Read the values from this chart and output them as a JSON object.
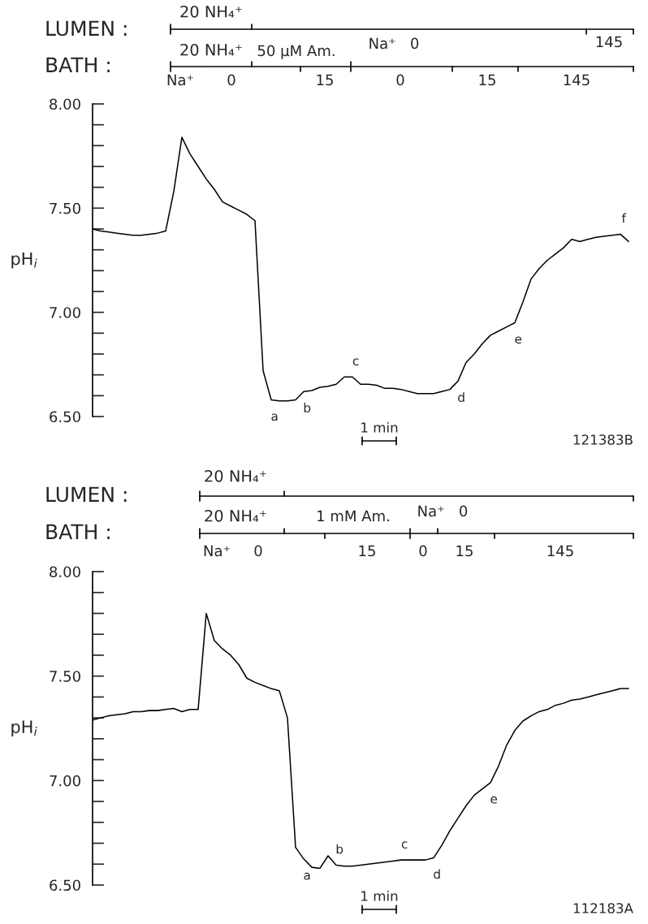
{
  "chart_data": [
    {
      "type": "line",
      "ylabel": "pH$_{i}$",
      "ylim": [
        6.5,
        8.0
      ],
      "yticks": [
        {
          "value": 6.5,
          "label": "6.50"
        },
        {
          "value": 6.6,
          "label": null
        },
        {
          "value": 6.7,
          "label": null
        },
        {
          "value": 6.8,
          "label": null
        },
        {
          "value": 6.9,
          "label": null
        },
        {
          "value": 7.0,
          "label": "7.00"
        },
        {
          "value": 7.1,
          "label": null
        },
        {
          "value": 7.2,
          "label": null
        },
        {
          "value": 7.3,
          "label": null
        },
        {
          "value": 7.4,
          "label": null
        },
        {
          "value": 7.5,
          "label": "7.50"
        },
        {
          "value": 7.6,
          "label": null
        },
        {
          "value": 7.7,
          "label": null
        },
        {
          "value": 7.8,
          "label": null
        },
        {
          "value": 7.9,
          "label": null
        },
        {
          "value": 8.0,
          "label": "8.00"
        }
      ],
      "tick_labels": "y",
      "grid": false,
      "categories": [
        null,
        null,
        null,
        null,
        null,
        null,
        null,
        null,
        null,
        null,
        null,
        null,
        null,
        null,
        null,
        null,
        null,
        null,
        null,
        null,
        null,
        null,
        null,
        null,
        null,
        null,
        null,
        null,
        null,
        null,
        null,
        null,
        null,
        null,
        null,
        null,
        null,
        null,
        null,
        null,
        null,
        null,
        null,
        null,
        null,
        null,
        null,
        null,
        null,
        null,
        null,
        null,
        null,
        null,
        null,
        null,
        null,
        null,
        null,
        null,
        null,
        null,
        null,
        null,
        null,
        null,
        null
      ],
      "series": [
        {
          "color": "#000000",
          "values": [
            7.4,
            7.39,
            7.385,
            7.38,
            7.375,
            7.37,
            7.37,
            7.375,
            7.38,
            7.39,
            7.58,
            7.84,
            7.76,
            7.7,
            7.64,
            7.59,
            7.53,
            7.51,
            7.49,
            7.47,
            7.44,
            6.72,
            6.58,
            6.575,
            6.575,
            6.58,
            6.62,
            6.625,
            6.64,
            6.645,
            6.655,
            6.69,
            6.69,
            6.655,
            6.655,
            6.65,
            6.635,
            6.635,
            6.63,
            6.62,
            6.61,
            6.61,
            6.61,
            6.62,
            6.63,
            6.67,
            6.76,
            6.8,
            6.85,
            6.89,
            6.91,
            6.93,
            6.95,
            7.05,
            7.16,
            7.21,
            7.25,
            7.28,
            7.31,
            7.35,
            7.34,
            7.35,
            7.36,
            7.365,
            7.37,
            7.375,
            7.34
          ],
          "value_labels": [
            null,
            null,
            null,
            null,
            null,
            null,
            null,
            null,
            null,
            null,
            null,
            null,
            null,
            null,
            null,
            null,
            null,
            null,
            null,
            null,
            null,
            null,
            "a",
            null,
            null,
            null,
            "b",
            null,
            null,
            null,
            null,
            null,
            "c",
            null,
            null,
            null,
            null,
            null,
            null,
            null,
            null,
            null,
            null,
            null,
            null,
            "d",
            null,
            null,
            null,
            null,
            null,
            null,
            "e",
            null,
            null,
            null,
            null,
            null,
            null,
            null,
            null,
            null,
            null,
            null,
            null,
            "f",
            null
          ]
        }
      ],
      "annotations": [
        "LUMEN :",
        "20 NH₄⁺",
        "145",
        "BATH :",
        "20 NH₄⁺",
        "50 μM Am.",
        "Na⁺   0",
        "Na⁺",
        "0",
        "15",
        "0",
        "15",
        "145",
        "1 min",
        "121383B"
      ]
    },
    {
      "type": "line",
      "ylabel": "pH$_{i}$",
      "ylim": [
        6.5,
        8.0
      ],
      "yticks": [
        {
          "value": 6.5,
          "label": "6.50"
        },
        {
          "value": 6.6,
          "label": null
        },
        {
          "value": 6.7,
          "label": null
        },
        {
          "value": 6.8,
          "label": null
        },
        {
          "value": 6.9,
          "label": null
        },
        {
          "value": 7.0,
          "label": "7.00"
        },
        {
          "value": 7.1,
          "label": null
        },
        {
          "value": 7.2,
          "label": null
        },
        {
          "value": 7.3,
          "label": null
        },
        {
          "value": 7.4,
          "label": null
        },
        {
          "value": 7.5,
          "label": "7.50"
        },
        {
          "value": 7.6,
          "label": null
        },
        {
          "value": 7.7,
          "label": null
        },
        {
          "value": 7.8,
          "label": null
        },
        {
          "value": 7.9,
          "label": null
        },
        {
          "value": 8.0,
          "label": "8.00"
        }
      ],
      "tick_labels": "y",
      "grid": false,
      "categories": [
        null,
        null,
        null,
        null,
        null,
        null,
        null,
        null,
        null,
        null,
        null,
        null,
        null,
        null,
        null,
        null,
        null,
        null,
        null,
        null,
        null,
        null,
        null,
        null,
        null,
        null,
        null,
        null,
        null,
        null,
        null,
        null,
        null,
        null,
        null,
        null,
        null,
        null,
        null,
        null,
        null,
        null,
        null,
        null,
        null,
        null,
        null,
        null,
        null,
        null,
        null,
        null,
        null,
        null,
        null,
        null,
        null,
        null,
        null,
        null,
        null,
        null,
        null,
        null,
        null,
        null,
        null
      ],
      "series": [
        {
          "color": "#000000",
          "values": [
            7.29,
            7.3,
            7.31,
            7.315,
            7.32,
            7.33,
            7.33,
            7.335,
            7.335,
            7.34,
            7.345,
            7.33,
            7.34,
            7.34,
            7.8,
            7.67,
            7.63,
            7.6,
            7.555,
            7.49,
            7.47,
            7.455,
            7.44,
            7.43,
            7.3,
            6.68,
            6.625,
            6.585,
            6.58,
            6.64,
            6.595,
            6.59,
            6.59,
            6.595,
            6.6,
            6.605,
            6.61,
            6.615,
            6.62,
            6.62,
            6.62,
            6.62,
            6.63,
            6.69,
            6.76,
            6.82,
            6.88,
            6.93,
            6.96,
            6.99,
            7.07,
            7.17,
            7.24,
            7.285,
            7.31,
            7.33,
            7.34,
            7.36,
            7.37,
            7.385,
            7.39,
            7.4,
            7.41,
            7.42,
            7.43,
            7.44,
            7.44
          ],
          "value_labels": [
            null,
            null,
            null,
            null,
            null,
            null,
            null,
            null,
            null,
            null,
            null,
            null,
            null,
            null,
            null,
            null,
            null,
            null,
            null,
            null,
            null,
            null,
            null,
            null,
            null,
            null,
            "a",
            null,
            null,
            null,
            "b",
            null,
            null,
            null,
            null,
            null,
            null,
            null,
            "c",
            null,
            null,
            null,
            "d",
            null,
            null,
            null,
            null,
            null,
            null,
            "e",
            null,
            null,
            null,
            null,
            null,
            null,
            null,
            null,
            null,
            null,
            null,
            null,
            null,
            null,
            null,
            null,
            null
          ]
        }
      ],
      "annotations": [
        "LUMEN :",
        "20 NH₄⁺",
        "BATH :",
        "20 NH₄⁺",
        "1 mM Am.",
        "Na⁺   0",
        "Na⁺",
        "0",
        "15",
        "0",
        "15",
        "145",
        "1 min",
        "112183A"
      ]
    }
  ]
}
